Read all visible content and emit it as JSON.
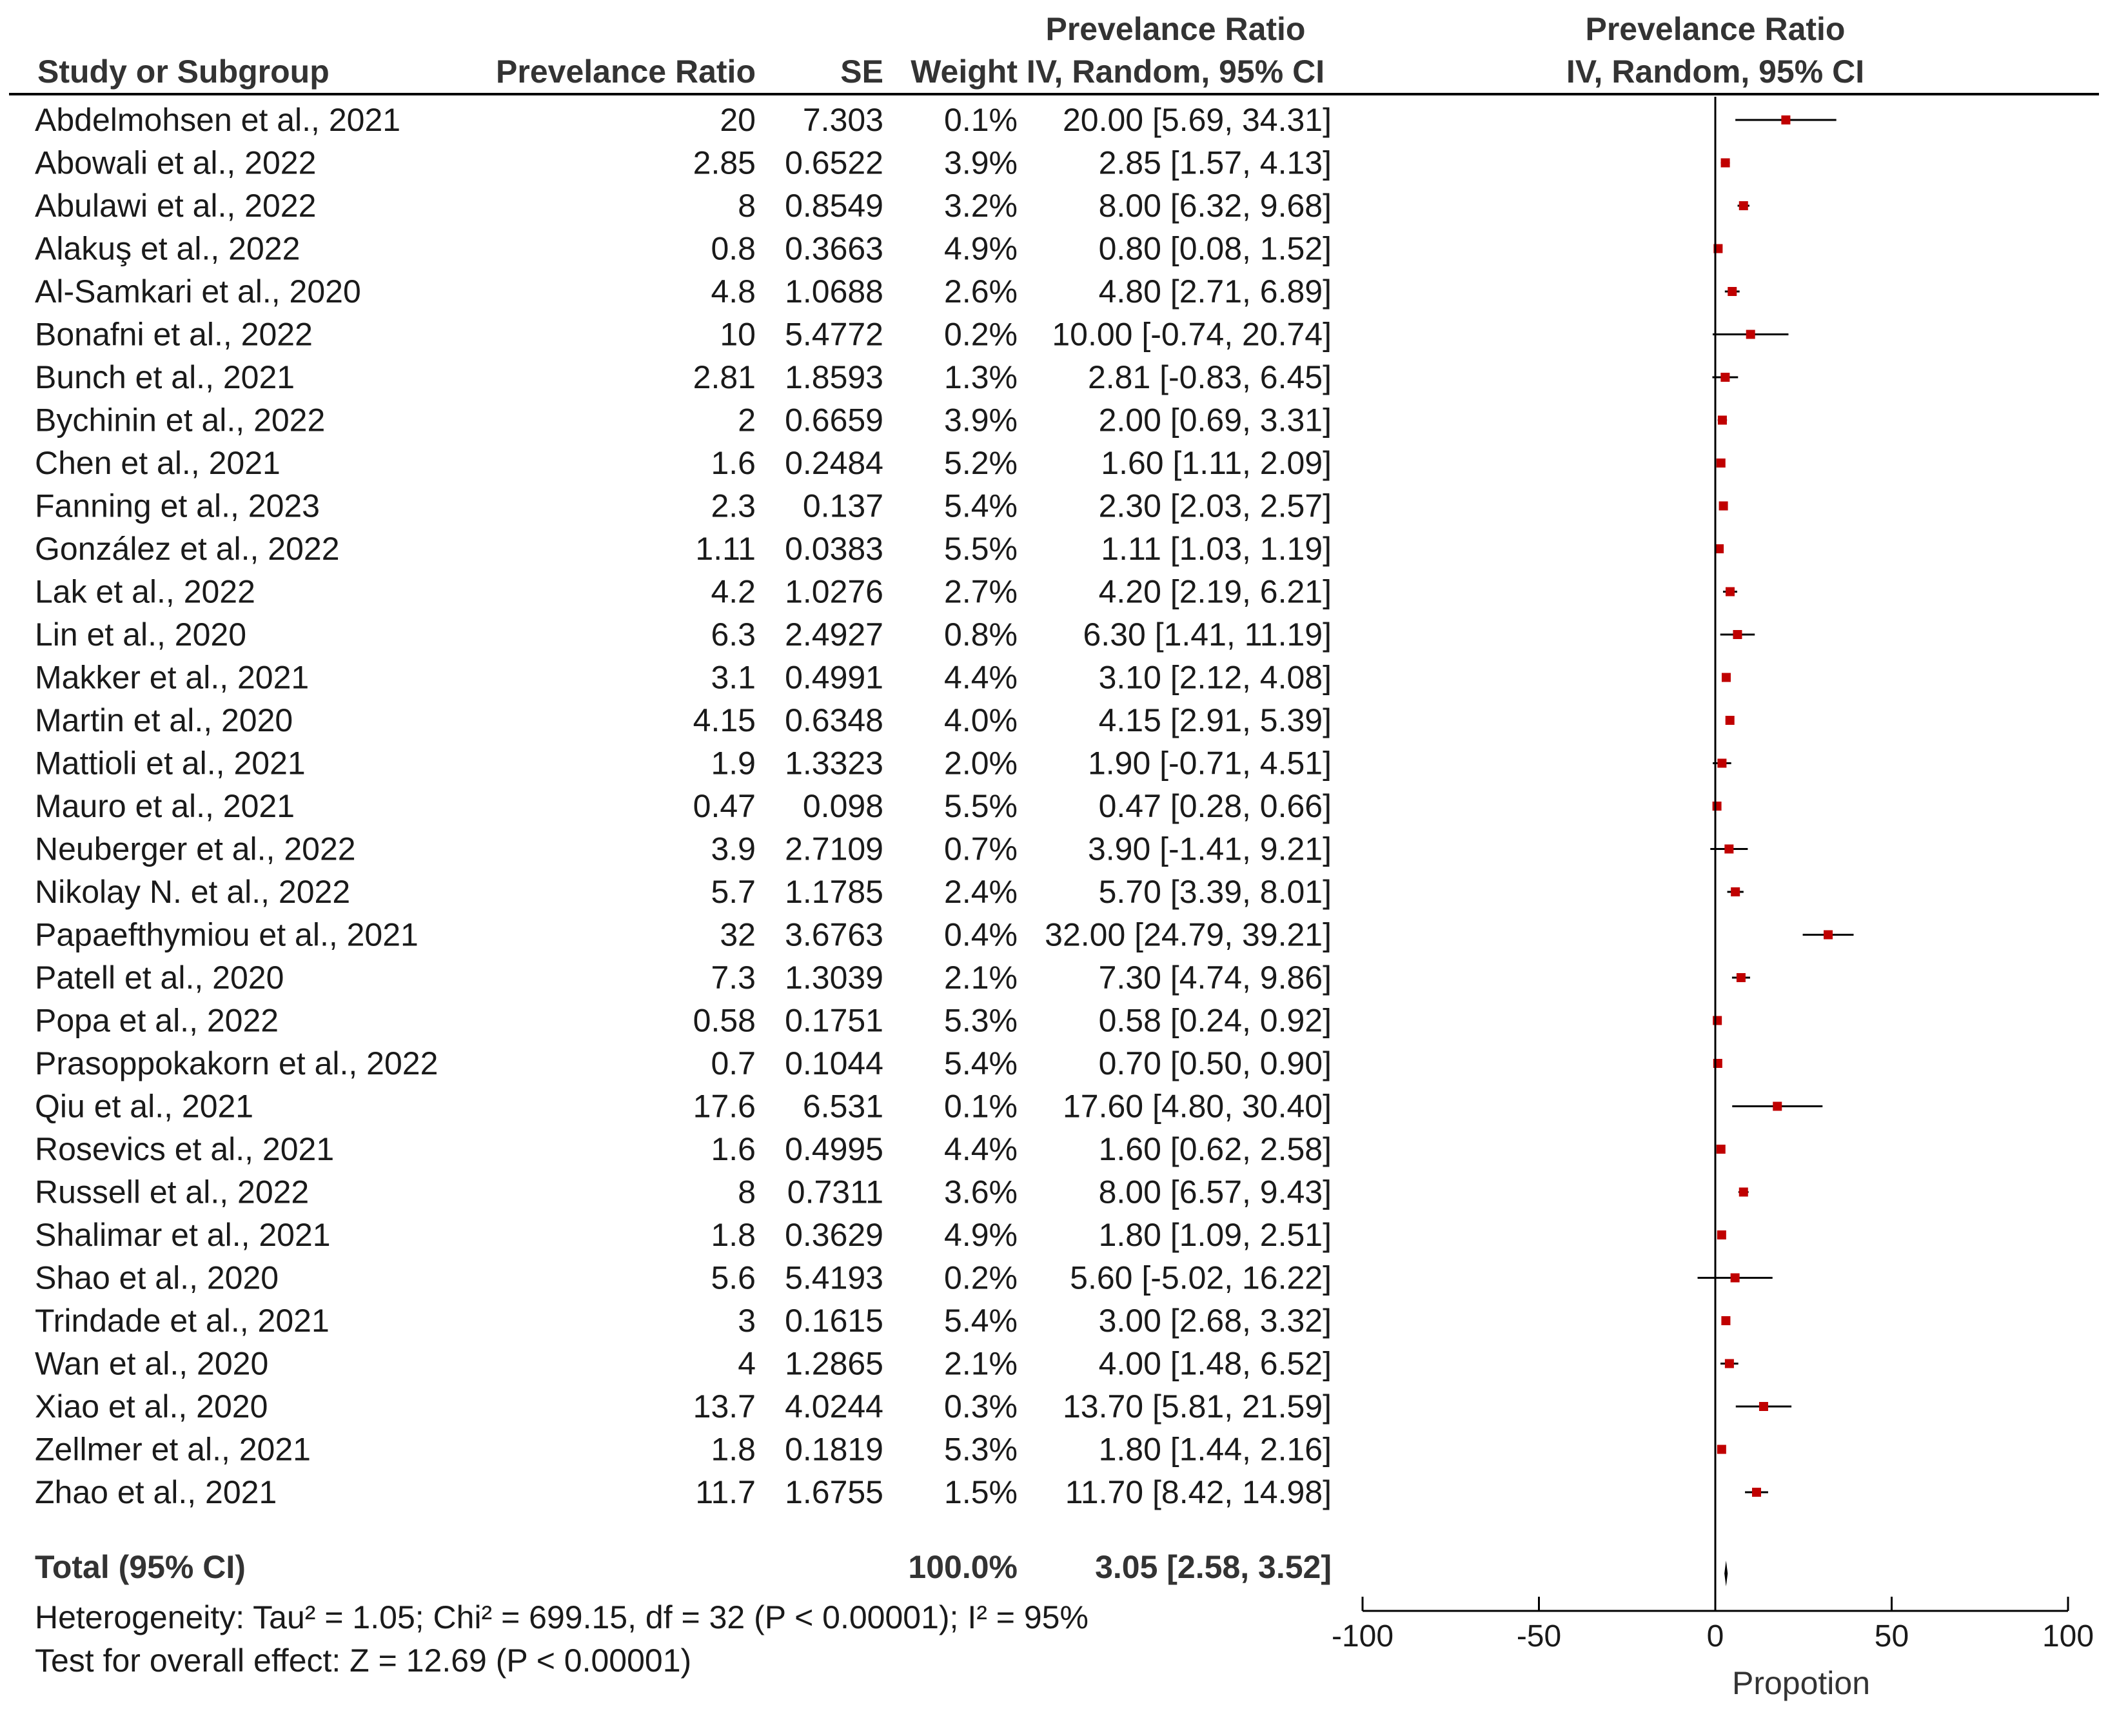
{
  "chart_data": {
    "type": "forest",
    "headers": {
      "study": "Study or Subgroup",
      "effect": "Prevelance Ratio",
      "se": "SE",
      "weight": "Weight",
      "ci_title": "Prevelance Ratio",
      "ci_sub": "IV, Random, 95% CI",
      "plot_title": "Prevelance Ratio",
      "plot_sub": "IV, Random, 95% CI"
    },
    "studies": [
      {
        "name": "Abdelmohsen et al., 2021",
        "effect": "20",
        "se": "7.303",
        "weight": "0.1%",
        "ci_text": "20.00 [5.69, 34.31]",
        "est": 20.0,
        "lo": 5.69,
        "hi": 34.31
      },
      {
        "name": "Abowali et al., 2022",
        "effect": "2.85",
        "se": "0.6522",
        "weight": "3.9%",
        "ci_text": "2.85 [1.57, 4.13]",
        "est": 2.85,
        "lo": 1.57,
        "hi": 4.13
      },
      {
        "name": "Abulawi et al., 2022",
        "effect": "8",
        "se": "0.8549",
        "weight": "3.2%",
        "ci_text": "8.00 [6.32, 9.68]",
        "est": 8.0,
        "lo": 6.32,
        "hi": 9.68
      },
      {
        "name": "Alakuş et al., 2022",
        "effect": "0.8",
        "se": "0.3663",
        "weight": "4.9%",
        "ci_text": "0.80 [0.08, 1.52]",
        "est": 0.8,
        "lo": 0.08,
        "hi": 1.52
      },
      {
        "name": "Al-Samkari et al., 2020",
        "effect": "4.8",
        "se": "1.0688",
        "weight": "2.6%",
        "ci_text": "4.80 [2.71, 6.89]",
        "est": 4.8,
        "lo": 2.71,
        "hi": 6.89
      },
      {
        "name": "Bonafni et al., 2022",
        "effect": "10",
        "se": "5.4772",
        "weight": "0.2%",
        "ci_text": "10.00 [-0.74, 20.74]",
        "est": 10.0,
        "lo": -0.74,
        "hi": 20.74
      },
      {
        "name": "Bunch et al., 2021",
        "effect": "2.81",
        "se": "1.8593",
        "weight": "1.3%",
        "ci_text": "2.81 [-0.83, 6.45]",
        "est": 2.81,
        "lo": -0.83,
        "hi": 6.45
      },
      {
        "name": "Bychinin et al., 2022",
        "effect": "2",
        "se": "0.6659",
        "weight": "3.9%",
        "ci_text": "2.00 [0.69, 3.31]",
        "est": 2.0,
        "lo": 0.69,
        "hi": 3.31
      },
      {
        "name": "Chen et al., 2021",
        "effect": "1.6",
        "se": "0.2484",
        "weight": "5.2%",
        "ci_text": "1.60 [1.11, 2.09]",
        "est": 1.6,
        "lo": 1.11,
        "hi": 2.09
      },
      {
        "name": "Fanning et al., 2023",
        "effect": "2.3",
        "se": "0.137",
        "weight": "5.4%",
        "ci_text": "2.30 [2.03, 2.57]",
        "est": 2.3,
        "lo": 2.03,
        "hi": 2.57
      },
      {
        "name": "González et al., 2022",
        "effect": "1.11",
        "se": "0.0383",
        "weight": "5.5%",
        "ci_text": "1.11 [1.03, 1.19]",
        "est": 1.11,
        "lo": 1.03,
        "hi": 1.19
      },
      {
        "name": "Lak et al., 2022",
        "effect": "4.2",
        "se": "1.0276",
        "weight": "2.7%",
        "ci_text": "4.20 [2.19, 6.21]",
        "est": 4.2,
        "lo": 2.19,
        "hi": 6.21
      },
      {
        "name": "Lin et al., 2020",
        "effect": "6.3",
        "se": "2.4927",
        "weight": "0.8%",
        "ci_text": "6.30 [1.41, 11.19]",
        "est": 6.3,
        "lo": 1.41,
        "hi": 11.19
      },
      {
        "name": "Makker et al., 2021",
        "effect": "3.1",
        "se": "0.4991",
        "weight": "4.4%",
        "ci_text": "3.10 [2.12, 4.08]",
        "est": 3.1,
        "lo": 2.12,
        "hi": 4.08
      },
      {
        "name": "Martin et al., 2020",
        "effect": "4.15",
        "se": "0.6348",
        "weight": "4.0%",
        "ci_text": "4.15 [2.91, 5.39]",
        "est": 4.15,
        "lo": 2.91,
        "hi": 5.39
      },
      {
        "name": "Mattioli et al., 2021",
        "effect": "1.9",
        "se": "1.3323",
        "weight": "2.0%",
        "ci_text": "1.90 [-0.71, 4.51]",
        "est": 1.9,
        "lo": -0.71,
        "hi": 4.51
      },
      {
        "name": "Mauro et al., 2021",
        "effect": "0.47",
        "se": "0.098",
        "weight": "5.5%",
        "ci_text": "0.47 [0.28, 0.66]",
        "est": 0.47,
        "lo": 0.28,
        "hi": 0.66
      },
      {
        "name": "Neuberger et al., 2022",
        "effect": "3.9",
        "se": "2.7109",
        "weight": "0.7%",
        "ci_text": "3.90 [-1.41, 9.21]",
        "est": 3.9,
        "lo": -1.41,
        "hi": 9.21
      },
      {
        "name": "Nikolay N. et al., 2022",
        "effect": "5.7",
        "se": "1.1785",
        "weight": "2.4%",
        "ci_text": "5.70 [3.39, 8.01]",
        "est": 5.7,
        "lo": 3.39,
        "hi": 8.01
      },
      {
        "name": "Papaefthymiou et al., 2021",
        "effect": "32",
        "se": "3.6763",
        "weight": "0.4%",
        "ci_text": "32.00 [24.79, 39.21]",
        "est": 32.0,
        "lo": 24.79,
        "hi": 39.21
      },
      {
        "name": "Patell et al., 2020",
        "effect": "7.3",
        "se": "1.3039",
        "weight": "2.1%",
        "ci_text": "7.30 [4.74, 9.86]",
        "est": 7.3,
        "lo": 4.74,
        "hi": 9.86
      },
      {
        "name": "Popa et al., 2022",
        "effect": "0.58",
        "se": "0.1751",
        "weight": "5.3%",
        "ci_text": "0.58 [0.24, 0.92]",
        "est": 0.58,
        "lo": 0.24,
        "hi": 0.92
      },
      {
        "name": "Prasoppokakorn et al., 2022",
        "effect": "0.7",
        "se": "0.1044",
        "weight": "5.4%",
        "ci_text": "0.70 [0.50, 0.90]",
        "est": 0.7,
        "lo": 0.5,
        "hi": 0.9
      },
      {
        "name": "Qiu et al., 2021",
        "effect": "17.6",
        "se": "6.531",
        "weight": "0.1%",
        "ci_text": "17.60 [4.80, 30.40]",
        "est": 17.6,
        "lo": 4.8,
        "hi": 30.4
      },
      {
        "name": "Rosevics et al., 2021",
        "effect": "1.6",
        "se": "0.4995",
        "weight": "4.4%",
        "ci_text": "1.60 [0.62, 2.58]",
        "est": 1.6,
        "lo": 0.62,
        "hi": 2.58
      },
      {
        "name": "Russell et al., 2022",
        "effect": "8",
        "se": "0.7311",
        "weight": "3.6%",
        "ci_text": "8.00 [6.57, 9.43]",
        "est": 8.0,
        "lo": 6.57,
        "hi": 9.43
      },
      {
        "name": "Shalimar et al., 2021",
        "effect": "1.8",
        "se": "0.3629",
        "weight": "4.9%",
        "ci_text": "1.80 [1.09, 2.51]",
        "est": 1.8,
        "lo": 1.09,
        "hi": 2.51
      },
      {
        "name": "Shao et al., 2020",
        "effect": "5.6",
        "se": "5.4193",
        "weight": "0.2%",
        "ci_text": "5.60 [-5.02, 16.22]",
        "est": 5.6,
        "lo": -5.02,
        "hi": 16.22
      },
      {
        "name": "Trindade et al., 2021",
        "effect": "3",
        "se": "0.1615",
        "weight": "5.4%",
        "ci_text": "3.00 [2.68, 3.32]",
        "est": 3.0,
        "lo": 2.68,
        "hi": 3.32
      },
      {
        "name": "Wan et al., 2020",
        "effect": "4",
        "se": "1.2865",
        "weight": "2.1%",
        "ci_text": "4.00 [1.48, 6.52]",
        "est": 4.0,
        "lo": 1.48,
        "hi": 6.52
      },
      {
        "name": "Xiao et al., 2020",
        "effect": "13.7",
        "se": "4.0244",
        "weight": "0.3%",
        "ci_text": "13.70 [5.81, 21.59]",
        "est": 13.7,
        "lo": 5.81,
        "hi": 21.59
      },
      {
        "name": "Zellmer et al., 2021",
        "effect": "1.8",
        "se": "0.1819",
        "weight": "5.3%",
        "ci_text": "1.80 [1.44, 2.16]",
        "est": 1.8,
        "lo": 1.44,
        "hi": 2.16
      },
      {
        "name": "Zhao et al., 2021",
        "effect": "11.7",
        "se": "1.6755",
        "weight": "1.5%",
        "ci_text": "11.70 [8.42, 14.98]",
        "est": 11.7,
        "lo": 8.42,
        "hi": 14.98
      }
    ],
    "total": {
      "label": "Total (95% CI)",
      "weight": "100.0%",
      "ci_text": "3.05 [2.58, 3.52]",
      "est": 3.05,
      "lo": 2.58,
      "hi": 3.52
    },
    "heterogeneity": "Heterogeneity: Tau² = 1.05; Chi² = 699.15, df = 32 (P < 0.00001); I² = 95%",
    "overall_effect": "Test for overall effect: Z = 12.69 (P < 0.00001)",
    "axis": {
      "xlim": [
        -100,
        100
      ],
      "ticks": [
        -100,
        -50,
        0,
        50,
        100
      ],
      "xlabel": "Propotion"
    },
    "colors": {
      "point": "#c00000",
      "line": "#000000",
      "text": "#1a1a1a"
    }
  }
}
